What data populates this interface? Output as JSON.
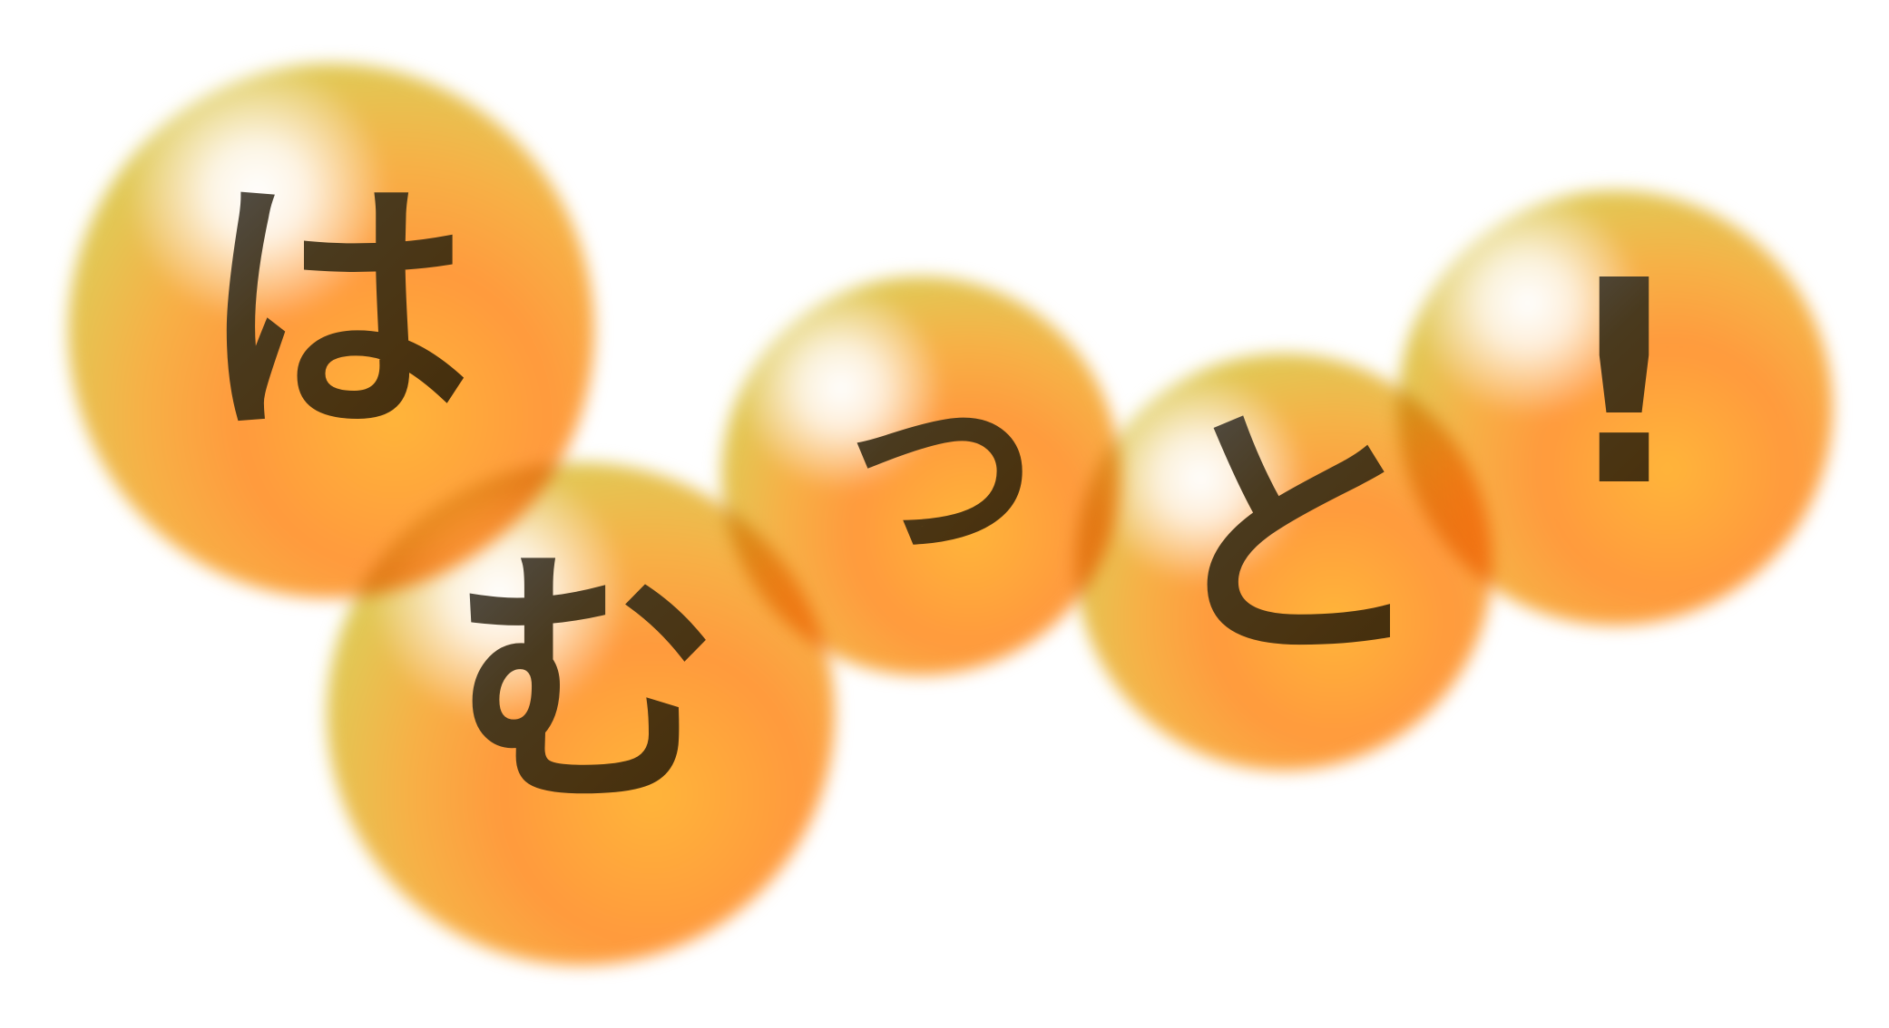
{
  "title_graphic": {
    "characters": [
      {
        "glyph": "は"
      },
      {
        "glyph": "む"
      },
      {
        "glyph": "っ"
      },
      {
        "glyph": "と"
      },
      {
        "glyph": "!"
      }
    ],
    "colors": {
      "text": "#4a3310",
      "bubble_core": "#ffb53a",
      "bubble_mid": "#ff9a3d",
      "bubble_rim": "#d9cf5a",
      "bubble_halo": "#f0b4eb",
      "background": "#ffffff"
    }
  }
}
